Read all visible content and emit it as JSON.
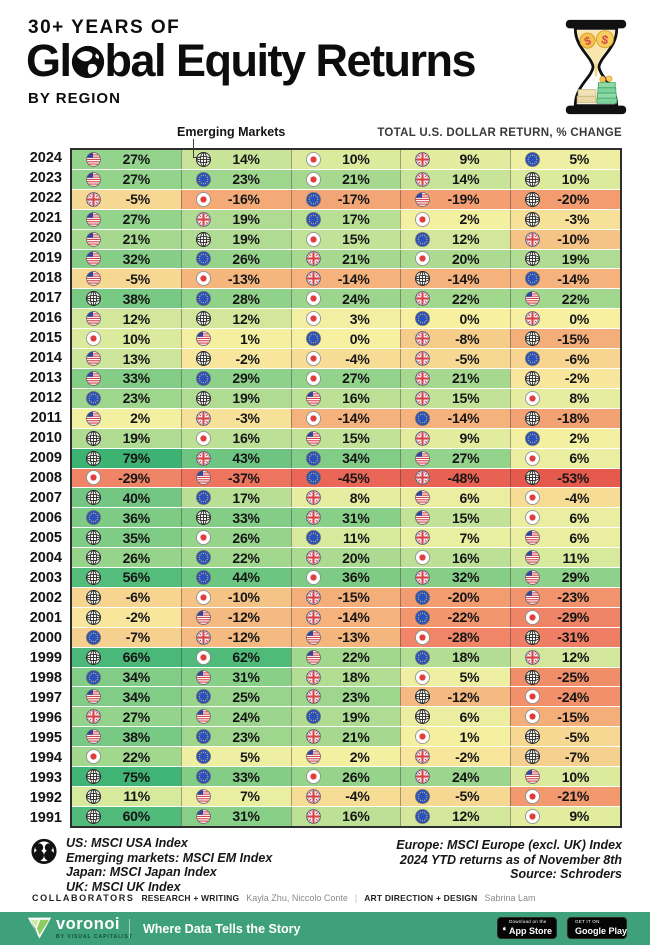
{
  "header": {
    "kicker": "30+ YEARS OF",
    "title_pre": "Gl",
    "title_post": "bal Equity Returns",
    "subtitle": "BY REGION"
  },
  "table": {
    "annotation": "Emerging Markets",
    "header_right": "TOTAL U.S. DOLLAR RETURN, % CHANGE",
    "regions": {
      "us": {
        "label": "United States",
        "icon": "us-flag-icon"
      },
      "em": {
        "label": "Emerging Markets",
        "icon": "emerging-markets-globe-icon"
      },
      "jp": {
        "label": "Japan",
        "icon": "japan-flag-icon"
      },
      "uk": {
        "label": "United Kingdom",
        "icon": "uk-flag-icon"
      },
      "eu": {
        "label": "Europe",
        "icon": "europe-eu-flag-icon"
      }
    }
  },
  "color_scale": [
    {
      "v": 80,
      "c": "#3bb273"
    },
    {
      "v": 56,
      "c": "#55bd7c"
    },
    {
      "v": 40,
      "c": "#74c783"
    },
    {
      "v": 30,
      "c": "#8ad089"
    },
    {
      "v": 22,
      "c": "#a2d78e"
    },
    {
      "v": 16,
      "c": "#bce095"
    },
    {
      "v": 12,
      "c": "#d2e79b"
    },
    {
      "v": 8,
      "c": "#e6eda0"
    },
    {
      "v": 4,
      "c": "#f0efa2"
    },
    {
      "v": 0,
      "c": "#f6f0a0"
    },
    {
      "v": -4,
      "c": "#f7dc95"
    },
    {
      "v": -8,
      "c": "#f6cc8b"
    },
    {
      "v": -13,
      "c": "#f5b67e"
    },
    {
      "v": -18,
      "c": "#f3a273"
    },
    {
      "v": -24,
      "c": "#f1906b"
    },
    {
      "v": -31,
      "c": "#ef7f64"
    },
    {
      "v": -40,
      "c": "#ec6e5c"
    },
    {
      "v": -53,
      "c": "#e65a4e"
    }
  ],
  "chart_data": {
    "type": "heatmap",
    "title": "30+ Years of Global Equity Returns by Region",
    "subtitle": "Total U.S. dollar return, % change",
    "unit": "%",
    "note": "Within each year, regions are ordered best-to-worst; cell color maps green (high) to red (low)",
    "rows": [
      {
        "year": "2024",
        "cells": [
          {
            "r": "us",
            "v": 27
          },
          {
            "r": "em",
            "v": 14
          },
          {
            "r": "jp",
            "v": 10
          },
          {
            "r": "uk",
            "v": 9
          },
          {
            "r": "eu",
            "v": 5
          }
        ]
      },
      {
        "year": "2023",
        "cells": [
          {
            "r": "us",
            "v": 27
          },
          {
            "r": "eu",
            "v": 23
          },
          {
            "r": "jp",
            "v": 21
          },
          {
            "r": "uk",
            "v": 14
          },
          {
            "r": "em",
            "v": 10
          }
        ]
      },
      {
        "year": "2022",
        "cells": [
          {
            "r": "uk",
            "v": -5
          },
          {
            "r": "jp",
            "v": -16
          },
          {
            "r": "eu",
            "v": -17
          },
          {
            "r": "us",
            "v": -19
          },
          {
            "r": "em",
            "v": -20
          }
        ]
      },
      {
        "year": "2021",
        "cells": [
          {
            "r": "us",
            "v": 27
          },
          {
            "r": "uk",
            "v": 19
          },
          {
            "r": "eu",
            "v": 17
          },
          {
            "r": "jp",
            "v": 2
          },
          {
            "r": "em",
            "v": -3
          }
        ]
      },
      {
        "year": "2020",
        "cells": [
          {
            "r": "us",
            "v": 21
          },
          {
            "r": "em",
            "v": 19
          },
          {
            "r": "jp",
            "v": 15
          },
          {
            "r": "eu",
            "v": 12
          },
          {
            "r": "uk",
            "v": -10
          }
        ]
      },
      {
        "year": "2019",
        "cells": [
          {
            "r": "us",
            "v": 32
          },
          {
            "r": "eu",
            "v": 26
          },
          {
            "r": "uk",
            "v": 21
          },
          {
            "r": "jp",
            "v": 20
          },
          {
            "r": "em",
            "v": 19
          }
        ]
      },
      {
        "year": "2018",
        "cells": [
          {
            "r": "us",
            "v": -5
          },
          {
            "r": "jp",
            "v": -13
          },
          {
            "r": "uk",
            "v": -14
          },
          {
            "r": "em",
            "v": -14
          },
          {
            "r": "eu",
            "v": -14
          }
        ]
      },
      {
        "year": "2017",
        "cells": [
          {
            "r": "em",
            "v": 38
          },
          {
            "r": "eu",
            "v": 28
          },
          {
            "r": "jp",
            "v": 24
          },
          {
            "r": "uk",
            "v": 22
          },
          {
            "r": "us",
            "v": 22
          }
        ]
      },
      {
        "year": "2016",
        "cells": [
          {
            "r": "us",
            "v": 12
          },
          {
            "r": "em",
            "v": 12
          },
          {
            "r": "jp",
            "v": 3
          },
          {
            "r": "eu",
            "v": 0
          },
          {
            "r": "uk",
            "v": 0
          }
        ]
      },
      {
        "year": "2015",
        "cells": [
          {
            "r": "jp",
            "v": 10
          },
          {
            "r": "us",
            "v": 1
          },
          {
            "r": "eu",
            "v": 0
          },
          {
            "r": "uk",
            "v": -8
          },
          {
            "r": "em",
            "v": -15
          }
        ]
      },
      {
        "year": "2014",
        "cells": [
          {
            "r": "us",
            "v": 13
          },
          {
            "r": "em",
            "v": -2
          },
          {
            "r": "jp",
            "v": -4
          },
          {
            "r": "uk",
            "v": -5
          },
          {
            "r": "eu",
            "v": -6
          }
        ]
      },
      {
        "year": "2013",
        "cells": [
          {
            "r": "us",
            "v": 33
          },
          {
            "r": "eu",
            "v": 29
          },
          {
            "r": "jp",
            "v": 27
          },
          {
            "r": "uk",
            "v": 21
          },
          {
            "r": "em",
            "v": -2
          }
        ]
      },
      {
        "year": "2012",
        "cells": [
          {
            "r": "eu",
            "v": 23
          },
          {
            "r": "em",
            "v": 19
          },
          {
            "r": "us",
            "v": 16
          },
          {
            "r": "uk",
            "v": 15
          },
          {
            "r": "jp",
            "v": 8
          }
        ]
      },
      {
        "year": "2011",
        "cells": [
          {
            "r": "us",
            "v": 2
          },
          {
            "r": "uk",
            "v": -3
          },
          {
            "r": "jp",
            "v": -14
          },
          {
            "r": "eu",
            "v": -14
          },
          {
            "r": "em",
            "v": -18
          }
        ]
      },
      {
        "year": "2010",
        "cells": [
          {
            "r": "em",
            "v": 19
          },
          {
            "r": "jp",
            "v": 16
          },
          {
            "r": "us",
            "v": 15
          },
          {
            "r": "uk",
            "v": 9
          },
          {
            "r": "eu",
            "v": 2
          }
        ]
      },
      {
        "year": "2009",
        "cells": [
          {
            "r": "em",
            "v": 79
          },
          {
            "r": "uk",
            "v": 43
          },
          {
            "r": "eu",
            "v": 34
          },
          {
            "r": "us",
            "v": 27
          },
          {
            "r": "jp",
            "v": 6
          }
        ]
      },
      {
        "year": "2008",
        "cells": [
          {
            "r": "jp",
            "v": -29
          },
          {
            "r": "us",
            "v": -37
          },
          {
            "r": "eu",
            "v": -45
          },
          {
            "r": "uk",
            "v": -48
          },
          {
            "r": "em",
            "v": -53
          }
        ]
      },
      {
        "year": "2007",
        "cells": [
          {
            "r": "em",
            "v": 40
          },
          {
            "r": "eu",
            "v": 17
          },
          {
            "r": "uk",
            "v": 8
          },
          {
            "r": "us",
            "v": 6
          },
          {
            "r": "jp",
            "v": -4
          }
        ]
      },
      {
        "year": "2006",
        "cells": [
          {
            "r": "eu",
            "v": 36
          },
          {
            "r": "em",
            "v": 33
          },
          {
            "r": "uk",
            "v": 31
          },
          {
            "r": "us",
            "v": 15
          },
          {
            "r": "jp",
            "v": 6
          }
        ]
      },
      {
        "year": "2005",
        "cells": [
          {
            "r": "em",
            "v": 35
          },
          {
            "r": "jp",
            "v": 26
          },
          {
            "r": "eu",
            "v": 11
          },
          {
            "r": "uk",
            "v": 7
          },
          {
            "r": "us",
            "v": 6
          }
        ]
      },
      {
        "year": "2004",
        "cells": [
          {
            "r": "em",
            "v": 26
          },
          {
            "r": "eu",
            "v": 22
          },
          {
            "r": "uk",
            "v": 20
          },
          {
            "r": "jp",
            "v": 16
          },
          {
            "r": "us",
            "v": 11
          }
        ]
      },
      {
        "year": "2003",
        "cells": [
          {
            "r": "em",
            "v": 56
          },
          {
            "r": "eu",
            "v": 44
          },
          {
            "r": "jp",
            "v": 36
          },
          {
            "r": "uk",
            "v": 32
          },
          {
            "r": "us",
            "v": 29
          }
        ]
      },
      {
        "year": "2002",
        "cells": [
          {
            "r": "em",
            "v": -6
          },
          {
            "r": "jp",
            "v": -10
          },
          {
            "r": "uk",
            "v": -15
          },
          {
            "r": "eu",
            "v": -20
          },
          {
            "r": "us",
            "v": -23
          }
        ]
      },
      {
        "year": "2001",
        "cells": [
          {
            "r": "em",
            "v": -2
          },
          {
            "r": "us",
            "v": -12
          },
          {
            "r": "uk",
            "v": -14
          },
          {
            "r": "eu",
            "v": -22
          },
          {
            "r": "jp",
            "v": -29
          }
        ]
      },
      {
        "year": "2000",
        "cells": [
          {
            "r": "eu",
            "v": -7
          },
          {
            "r": "uk",
            "v": -12
          },
          {
            "r": "us",
            "v": -13
          },
          {
            "r": "jp",
            "v": -28
          },
          {
            "r": "em",
            "v": -31
          }
        ]
      },
      {
        "year": "1999",
        "cells": [
          {
            "r": "em",
            "v": 66
          },
          {
            "r": "jp",
            "v": 62
          },
          {
            "r": "us",
            "v": 22
          },
          {
            "r": "eu",
            "v": 18
          },
          {
            "r": "uk",
            "v": 12
          }
        ]
      },
      {
        "year": "1998",
        "cells": [
          {
            "r": "eu",
            "v": 34
          },
          {
            "r": "us",
            "v": 31
          },
          {
            "r": "uk",
            "v": 18
          },
          {
            "r": "jp",
            "v": 5
          },
          {
            "r": "em",
            "v": -25
          }
        ]
      },
      {
        "year": "1997",
        "cells": [
          {
            "r": "us",
            "v": 34
          },
          {
            "r": "eu",
            "v": 25
          },
          {
            "r": "uk",
            "v": 23
          },
          {
            "r": "em",
            "v": -12
          },
          {
            "r": "jp",
            "v": -24
          }
        ]
      },
      {
        "year": "1996",
        "cells": [
          {
            "r": "uk",
            "v": 27
          },
          {
            "r": "us",
            "v": 24
          },
          {
            "r": "eu",
            "v": 19
          },
          {
            "r": "em",
            "v": 6
          },
          {
            "r": "jp",
            "v": -15
          }
        ]
      },
      {
        "year": "1995",
        "cells": [
          {
            "r": "us",
            "v": 38
          },
          {
            "r": "eu",
            "v": 23
          },
          {
            "r": "uk",
            "v": 21
          },
          {
            "r": "jp",
            "v": 1
          },
          {
            "r": "em",
            "v": -5
          }
        ]
      },
      {
        "year": "1994",
        "cells": [
          {
            "r": "jp",
            "v": 22
          },
          {
            "r": "eu",
            "v": 5
          },
          {
            "r": "us",
            "v": 2
          },
          {
            "r": "uk",
            "v": -2
          },
          {
            "r": "em",
            "v": -7
          }
        ]
      },
      {
        "year": "1993",
        "cells": [
          {
            "r": "em",
            "v": 75
          },
          {
            "r": "eu",
            "v": 33
          },
          {
            "r": "jp",
            "v": 26
          },
          {
            "r": "uk",
            "v": 24
          },
          {
            "r": "us",
            "v": 10
          }
        ]
      },
      {
        "year": "1992",
        "cells": [
          {
            "r": "em",
            "v": 11
          },
          {
            "r": "us",
            "v": 7
          },
          {
            "r": "uk",
            "v": -4
          },
          {
            "r": "eu",
            "v": -5
          },
          {
            "r": "jp",
            "v": -21
          }
        ]
      },
      {
        "year": "1991",
        "cells": [
          {
            "r": "em",
            "v": 60
          },
          {
            "r": "us",
            "v": 31
          },
          {
            "r": "uk",
            "v": 16
          },
          {
            "r": "eu",
            "v": 12
          },
          {
            "r": "jp",
            "v": 9
          }
        ]
      }
    ]
  },
  "footnotes": {
    "left": [
      "US: MSCI USA Index",
      "Emerging markets: MSCI EM Index",
      "Japan: MSCI Japan Index",
      "UK: MSCI UK Index"
    ],
    "right": [
      "Europe: MSCI Europe (excl. UK) Index",
      "2024 YTD returns as of November 8th",
      "Source: Schroders"
    ]
  },
  "collaborators": {
    "label": "COLLABORATORS",
    "separator": "|",
    "roles": [
      {
        "role": "RESEARCH + WRITING",
        "names": "Kayla Zhu, Niccolo Conte"
      },
      {
        "role": "ART DIRECTION + DESIGN",
        "names": "Sabrina Lam"
      }
    ]
  },
  "footer_bar": {
    "bg_color": "#3fa17c",
    "brand": "voronoi",
    "brand_sub": "BY VISUAL CAPITALIST",
    "tagline": "Where Data Tells the Story",
    "badges": [
      {
        "line1": "Download on the",
        "line2": "App Store"
      },
      {
        "line1": "GET IT ON",
        "line2": "Google Play"
      }
    ]
  }
}
